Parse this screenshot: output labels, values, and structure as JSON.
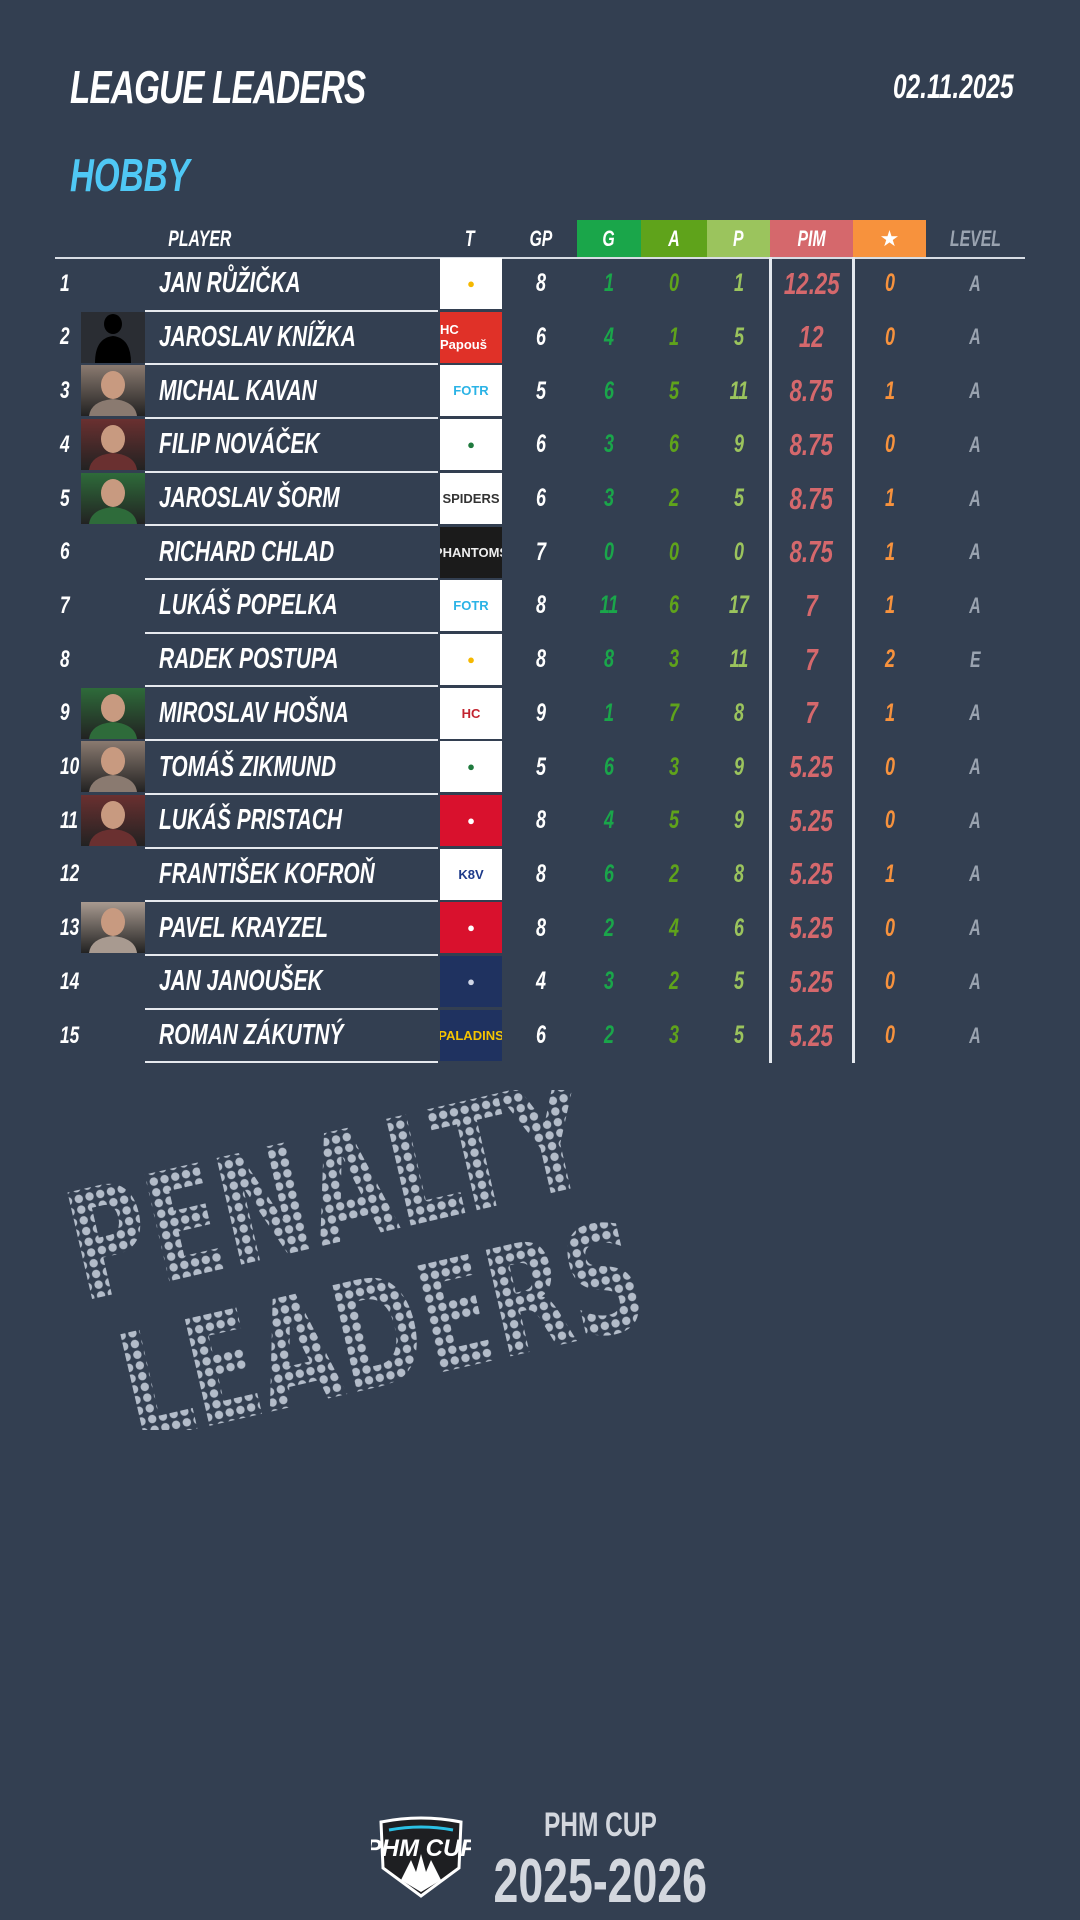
{
  "header": {
    "title": "LEAGUE LEADERS",
    "date": "02.11.2025",
    "league": "HOBBY"
  },
  "columns": {
    "player": "PLAYER",
    "team": "T",
    "gp": "GP",
    "g": "G",
    "a": "A",
    "p": "P",
    "pim": "PIM",
    "star": "★",
    "level": "LEVEL"
  },
  "colors": {
    "background": "#333f51",
    "g": "#1aa64a",
    "a": "#5fa31b",
    "p": "#9bc45d",
    "pim": "#d5686c",
    "star": "#f7923d",
    "level": "#9aa3b0",
    "league": "#4fc8f5"
  },
  "players": [
    {
      "rank": "1",
      "name": "JAN RŮŽIČKA",
      "photo": false,
      "team_logo": "duck-logo",
      "gp": "8",
      "g": "1",
      "a": "0",
      "p": "1",
      "pim": "12.25",
      "star": "0",
      "level": "A"
    },
    {
      "rank": "2",
      "name": "JAROSLAV KNÍŽKA",
      "photo": "silhouette",
      "team_logo": "hc-papous-logo",
      "team_text": "HC Papouš",
      "gp": "6",
      "g": "4",
      "a": "1",
      "p": "5",
      "pim": "12",
      "star": "0",
      "level": "A"
    },
    {
      "rank": "3",
      "name": "MICHAL KAVAN",
      "photo": true,
      "team_logo": "fotr-logo",
      "team_text": "FOTR",
      "gp": "5",
      "g": "6",
      "a": "5",
      "p": "11",
      "pim": "8.75",
      "star": "1",
      "level": "A"
    },
    {
      "rank": "4",
      "name": "FILIP NOVÁČEK",
      "photo": true,
      "team_logo": "green-shield-logo",
      "gp": "6",
      "g": "3",
      "a": "6",
      "p": "9",
      "pim": "8.75",
      "star": "0",
      "level": "A"
    },
    {
      "rank": "5",
      "name": "JAROSLAV ŠORM",
      "photo": true,
      "team_logo": "spiders-logo",
      "team_text": "SPIDERS",
      "gp": "6",
      "g": "3",
      "a": "2",
      "p": "5",
      "pim": "8.75",
      "star": "1",
      "level": "A"
    },
    {
      "rank": "6",
      "name": "RICHARD CHLAD",
      "photo": false,
      "team_logo": "phantoms-logo",
      "team_text": "PHANTOMS",
      "gp": "7",
      "g": "0",
      "a": "0",
      "p": "0",
      "pim": "8.75",
      "star": "1",
      "level": "A"
    },
    {
      "rank": "7",
      "name": "LUKÁŠ POPELKA",
      "photo": false,
      "team_logo": "fotr-logo",
      "team_text": "FOTR",
      "gp": "8",
      "g": "11",
      "a": "6",
      "p": "17",
      "pim": "7",
      "star": "1",
      "level": "A"
    },
    {
      "rank": "8",
      "name": "RADEK POSTUPA",
      "photo": false,
      "team_logo": "duck-logo",
      "gp": "8",
      "g": "8",
      "a": "3",
      "p": "11",
      "pim": "7",
      "star": "2",
      "level": "E"
    },
    {
      "rank": "9",
      "name": "MIROSLAV HOŠNA",
      "photo": true,
      "team_logo": "hc-logo",
      "team_text": "HC",
      "gp": "9",
      "g": "1",
      "a": "7",
      "p": "8",
      "pim": "7",
      "star": "1",
      "level": "A"
    },
    {
      "rank": "10",
      "name": "TOMÁŠ ZIKMUND",
      "photo": true,
      "team_logo": "green-shield-logo",
      "gp": "5",
      "g": "6",
      "a": "3",
      "p": "9",
      "pim": "5.25",
      "star": "0",
      "level": "A"
    },
    {
      "rank": "11",
      "name": "LUKÁŠ PRISTACH",
      "photo": true,
      "team_logo": "red-q-logo",
      "gp": "8",
      "g": "4",
      "a": "5",
      "p": "9",
      "pim": "5.25",
      "star": "0",
      "level": "A"
    },
    {
      "rank": "12",
      "name": "FRANTIŠEK KOFROŇ",
      "photo": false,
      "team_logo": "k8v-logo",
      "team_text": "K8V",
      "gp": "8",
      "g": "6",
      "a": "2",
      "p": "8",
      "pim": "5.25",
      "star": "1",
      "level": "A"
    },
    {
      "rank": "13",
      "name": "PAVEL KRAYZEL",
      "photo": true,
      "team_logo": "red-q-logo",
      "gp": "8",
      "g": "2",
      "a": "4",
      "p": "6",
      "pim": "5.25",
      "star": "0",
      "level": "A"
    },
    {
      "rank": "14",
      "name": "JAN JANOUŠEK",
      "photo": false,
      "team_logo": "bull-logo",
      "gp": "4",
      "g": "3",
      "a": "2",
      "p": "5",
      "pim": "5.25",
      "star": "0",
      "level": "A"
    },
    {
      "rank": "15",
      "name": "ROMAN ZÁKUTNÝ",
      "photo": false,
      "team_logo": "paladins-logo",
      "team_text": "PALADINS",
      "gp": "6",
      "g": "2",
      "a": "3",
      "p": "5",
      "pim": "5.25",
      "star": "0",
      "level": "A"
    }
  ],
  "banner": {
    "line1": "PENALTY",
    "line2": "LEADERS"
  },
  "footer": {
    "logo_text": "PHM CUP",
    "name": "PHM CUP",
    "season": "2025-2026"
  }
}
